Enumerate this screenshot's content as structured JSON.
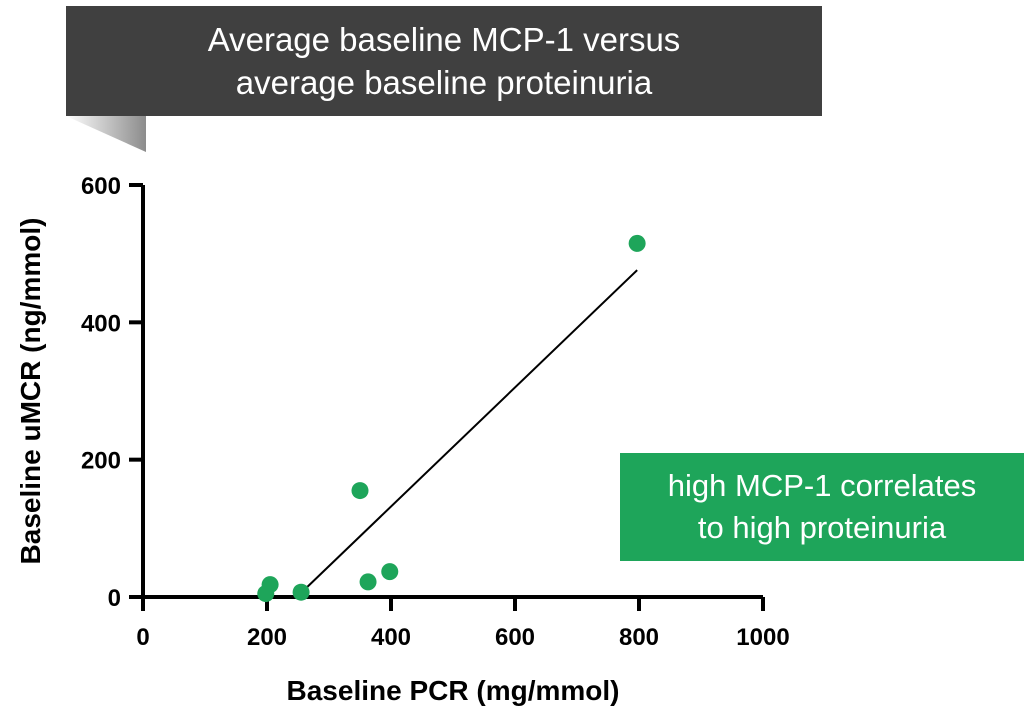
{
  "callouts": {
    "title_line1": "Average baseline MCP-1 versus",
    "title_line2": "average baseline proteinuria",
    "note_line1": "high MCP-1 correlates",
    "note_line2": "to high proteinuria"
  },
  "colors": {
    "title_bg": "#404040",
    "note_bg": "#1ea55a",
    "point": "#1ea55a",
    "axis": "#000000"
  },
  "chart_data": {
    "type": "scatter",
    "xlabel": "Baseline PCR (mg/mmol)",
    "ylabel": "Baseline uMCR (ng/mmol)",
    "xlim": [
      0,
      1000
    ],
    "ylim": [
      0,
      600
    ],
    "x_ticks": [
      "0",
      "200",
      "400",
      "600",
      "800",
      "1000"
    ],
    "y_ticks": [
      "0",
      "200",
      "400",
      "600"
    ],
    "points": [
      {
        "x": 198,
        "y": 5
      },
      {
        "x": 205,
        "y": 18
      },
      {
        "x": 255,
        "y": 7
      },
      {
        "x": 350,
        "y": 155
      },
      {
        "x": 363,
        "y": 22
      },
      {
        "x": 398,
        "y": 37
      },
      {
        "x": 797,
        "y": 515
      }
    ],
    "trendline": {
      "x": [
        255,
        797
      ],
      "y": [
        6,
        476
      ]
    },
    "grid": false,
    "legend": "none"
  }
}
